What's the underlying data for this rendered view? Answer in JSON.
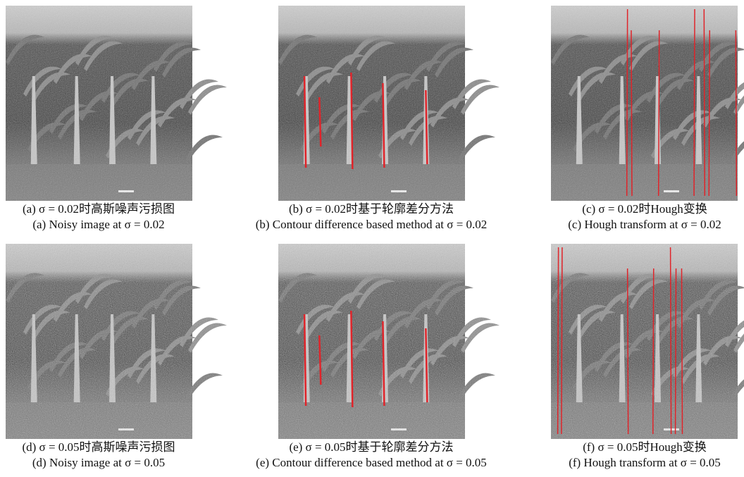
{
  "panels": [
    {
      "caption_zh": "(a) σ = 0.02时高斯噪声污损图",
      "caption_en": "(a) Noisy image at σ = 0.02"
    },
    {
      "caption_zh": "(b) σ = 0.02时基于轮廓差分方法",
      "caption_en": "(b) Contour difference based method at σ = 0.02"
    },
    {
      "caption_zh": "(c) σ = 0.02时Hough变换",
      "caption_en": "(c) Hough transform at σ = 0.02"
    },
    {
      "caption_zh": "(d) σ = 0.05时高斯噪声污损图",
      "caption_en": "(d) Noisy image at σ = 0.05"
    },
    {
      "caption_zh": "(e) σ = 0.05时基于轮廓差分方法",
      "caption_en": "(e) Contour difference based method at σ = 0.05"
    },
    {
      "caption_zh": "(f) σ = 0.05时Hough变换",
      "caption_en": "(f) Hough transform at σ = 0.05"
    }
  ]
}
